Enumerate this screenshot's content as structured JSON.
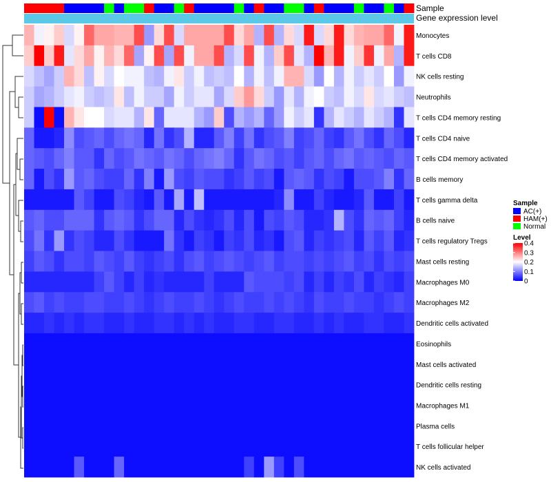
{
  "chart_data": {
    "type": "heatmap",
    "annotation_tracks": [
      "Sample",
      "Gene expression level"
    ],
    "row_labels": [
      "Monocytes",
      "T cells CD8",
      "NK cells resting",
      "Neutrophils",
      "T cells CD4 memory resting",
      "T cells CD4 naive",
      "T cells CD4 memory activated",
      "B cells memory",
      "T cells gamma delta",
      "B cells naive",
      "T cells regulatory  Tregs",
      "Mast cells resting",
      "Macrophages M0",
      "Macrophages M2",
      "Dendritic cells activated",
      "Eosinophils",
      "Mast cells activated",
      "Dendritic cells resting",
      "Macrophages M1",
      "Plasma cells",
      "T cells follicular helper",
      "NK cells activated"
    ],
    "sample_groups": [
      "H",
      "H",
      "H",
      "H",
      "A",
      "A",
      "A",
      "A",
      "N",
      "A",
      "N",
      "N",
      "H",
      "A",
      "A",
      "N",
      "H",
      "A",
      "A",
      "A",
      "A",
      "N",
      "A",
      "H",
      "A",
      "A",
      "N",
      "N",
      "A",
      "H",
      "A",
      "A",
      "A",
      "N",
      "A",
      "A",
      "N",
      "A",
      "H"
    ],
    "values": [
      [
        0.26,
        0.19,
        0.21,
        0.24,
        0.17,
        0.21,
        0.32,
        0.27,
        0.27,
        0.26,
        0.26,
        0.34,
        0.12,
        0.23,
        0.34,
        0.17,
        0.27,
        0.27,
        0.27,
        0.27,
        0.34,
        0.23,
        0.27,
        0.14,
        0.34,
        0.14,
        0.23,
        0.17,
        0.38,
        0.17,
        0.23,
        0.38,
        0.23,
        0.26,
        0.27,
        0.27,
        0.32,
        0.19,
        0.38
      ],
      [
        0.24,
        0.4,
        0.24,
        0.38,
        0.18,
        0.23,
        0.27,
        0.21,
        0.26,
        0.23,
        0.32,
        0.13,
        0.21,
        0.34,
        0.13,
        0.34,
        0.19,
        0.27,
        0.27,
        0.34,
        0.14,
        0.17,
        0.34,
        0.19,
        0.14,
        0.24,
        0.34,
        0.18,
        0.14,
        0.4,
        0.26,
        0.38,
        0.19,
        0.24,
        0.36,
        0.19,
        0.27,
        0.14,
        0.38
      ],
      [
        0.17,
        0.15,
        0.13,
        0.16,
        0.26,
        0.23,
        0.15,
        0.21,
        0.17,
        0.2,
        0.19,
        0.19,
        0.15,
        0.14,
        0.19,
        0.22,
        0.16,
        0.19,
        0.15,
        0.16,
        0.15,
        0.2,
        0.14,
        0.19,
        0.15,
        0.19,
        0.26,
        0.26,
        0.17,
        0.12,
        0.2,
        0.14,
        0.19,
        0.16,
        0.18,
        0.16,
        0.2,
        0.12,
        0.19
      ],
      [
        0.16,
        0.13,
        0.14,
        0.16,
        0.18,
        0.19,
        0.16,
        0.15,
        0.16,
        0.22,
        0.15,
        0.19,
        0.16,
        0.16,
        0.13,
        0.19,
        0.16,
        0.18,
        0.18,
        0.13,
        0.17,
        0.24,
        0.28,
        0.23,
        0.16,
        0.12,
        0.18,
        0.14,
        0.19,
        0.2,
        0.16,
        0.15,
        0.19,
        0.17,
        0.22,
        0.17,
        0.18,
        0.16,
        0.15
      ],
      [
        0.16,
        0.01,
        0.4,
        0.01,
        0.26,
        0.22,
        0.2,
        0.2,
        0.17,
        0.18,
        0.18,
        0.14,
        0.22,
        0.08,
        0.18,
        0.18,
        0.18,
        0.14,
        0.12,
        0.24,
        0.06,
        0.14,
        0.12,
        0.14,
        0.08,
        0.12,
        0.19,
        0.16,
        0.18,
        0.04,
        0.14,
        0.18,
        0.16,
        0.14,
        0.18,
        0.16,
        0.14,
        0.04,
        0.18
      ],
      [
        0.08,
        0.02,
        0.02,
        0.03,
        0.11,
        0.06,
        0.07,
        0.08,
        0.06,
        0.08,
        0.09,
        0.08,
        0.03,
        0.09,
        0.04,
        0.06,
        0.14,
        0.03,
        0.03,
        0.07,
        0.1,
        0.05,
        0.09,
        0.04,
        0.06,
        0.07,
        0.1,
        0.05,
        0.06,
        0.08,
        0.05,
        0.04,
        0.07,
        0.09,
        0.06,
        0.04,
        0.08,
        0.06,
        0.03
      ],
      [
        0.08,
        0.07,
        0.06,
        0.08,
        0.1,
        0.07,
        0.07,
        0.04,
        0.08,
        0.06,
        0.07,
        0.09,
        0.08,
        0.07,
        0.09,
        0.08,
        0.06,
        0.08,
        0.09,
        0.1,
        0.08,
        0.04,
        0.07,
        0.09,
        0.08,
        0.06,
        0.07,
        0.05,
        0.07,
        0.08,
        0.06,
        0.08,
        0.09,
        0.07,
        0.08,
        0.07,
        0.06,
        0.08,
        0.07
      ],
      [
        0.08,
        0.02,
        0.06,
        0.04,
        0.12,
        0.07,
        0.08,
        0.06,
        0.05,
        0.05,
        0.08,
        0.04,
        0.1,
        0.02,
        0.12,
        0.06,
        0.05,
        0.07,
        0.06,
        0.06,
        0.04,
        0.05,
        0.07,
        0.05,
        0.06,
        0.02,
        0.07,
        0.08,
        0.07,
        0.04,
        0.06,
        0.05,
        0.02,
        0.06,
        0.06,
        0.07,
        0.1,
        0.04,
        0.08
      ],
      [
        0.02,
        0.02,
        0.02,
        0.02,
        0.02,
        0.07,
        0.05,
        0.02,
        0.02,
        0.06,
        0.05,
        0.03,
        0.02,
        0.07,
        0.02,
        0.13,
        0.02,
        0.15,
        0.02,
        0.02,
        0.02,
        0.02,
        0.02,
        0.02,
        0.02,
        0.03,
        0.11,
        0.02,
        0.02,
        0.05,
        0.03,
        0.02,
        0.02,
        0.03,
        0.07,
        0.02,
        0.02,
        0.05,
        0.02
      ],
      [
        0.07,
        0.08,
        0.06,
        0.06,
        0.08,
        0.08,
        0.08,
        0.04,
        0.07,
        0.08,
        0.07,
        0.04,
        0.06,
        0.08,
        0.08,
        0.03,
        0.06,
        0.04,
        0.03,
        0.04,
        0.06,
        0.03,
        0.06,
        0.02,
        0.06,
        0.05,
        0.07,
        0.06,
        0.03,
        0.03,
        0.04,
        0.14,
        0.06,
        0.04,
        0.08,
        0.07,
        0.08,
        0.05,
        0.03
      ],
      [
        0.06,
        0.09,
        0.04,
        0.12,
        0.04,
        0.06,
        0.05,
        0.03,
        0.03,
        0.06,
        0.04,
        0.02,
        0.02,
        0.02,
        0.09,
        0.04,
        0.02,
        0.05,
        0.04,
        0.02,
        0.05,
        0.04,
        0.06,
        0.03,
        0.04,
        0.02,
        0.06,
        0.07,
        0.03,
        0.05,
        0.04,
        0.05,
        0.06,
        0.03,
        0.07,
        0.05,
        0.07,
        0.03,
        0.04
      ],
      [
        0.05,
        0.07,
        0.06,
        0.04,
        0.06,
        0.06,
        0.05,
        0.07,
        0.06,
        0.05,
        0.07,
        0.05,
        0.04,
        0.05,
        0.06,
        0.04,
        0.06,
        0.07,
        0.05,
        0.06,
        0.07,
        0.06,
        0.05,
        0.06,
        0.07,
        0.05,
        0.06,
        0.06,
        0.05,
        0.06,
        0.05,
        0.06,
        0.07,
        0.05,
        0.06,
        0.04,
        0.06,
        0.05,
        0.06
      ],
      [
        0.03,
        0.03,
        0.03,
        0.03,
        0.03,
        0.03,
        0.03,
        0.05,
        0.07,
        0.05,
        0.03,
        0.05,
        0.03,
        0.04,
        0.03,
        0.03,
        0.03,
        0.03,
        0.05,
        0.03,
        0.03,
        0.03,
        0.07,
        0.06,
        0.06,
        0.06,
        0.05,
        0.06,
        0.03,
        0.05,
        0.03,
        0.05,
        0.04,
        0.06,
        0.03,
        0.05,
        0.04,
        0.03,
        0.05
      ],
      [
        0.06,
        0.07,
        0.05,
        0.06,
        0.05,
        0.05,
        0.06,
        0.06,
        0.05,
        0.05,
        0.06,
        0.05,
        0.04,
        0.05,
        0.06,
        0.05,
        0.05,
        0.06,
        0.05,
        0.04,
        0.05,
        0.06,
        0.05,
        0.05,
        0.06,
        0.05,
        0.06,
        0.05,
        0.04,
        0.06,
        0.05,
        0.05,
        0.06,
        0.05,
        0.05,
        0.04,
        0.05,
        0.06,
        0.05
      ],
      [
        0.03,
        0.03,
        0.04,
        0.03,
        0.04,
        0.03,
        0.04,
        0.04,
        0.03,
        0.03,
        0.04,
        0.03,
        0.03,
        0.04,
        0.04,
        0.03,
        0.04,
        0.03,
        0.04,
        0.03,
        0.03,
        0.04,
        0.04,
        0.03,
        0.03,
        0.04,
        0.04,
        0.03,
        0.03,
        0.04,
        0.03,
        0.04,
        0.03,
        0.03,
        0.04,
        0.04,
        0.03,
        0.03,
        0.04
      ],
      [
        0.01,
        0.01,
        0.01,
        0.01,
        0.01,
        0.01,
        0.01,
        0.01,
        0.01,
        0.01,
        0.01,
        0.01,
        0.01,
        0.01,
        0.01,
        0.01,
        0.01,
        0.01,
        0.01,
        0.01,
        0.01,
        0.01,
        0.01,
        0.01,
        0.01,
        0.01,
        0.01,
        0.01,
        0.01,
        0.01,
        0.01,
        0.01,
        0.01,
        0.01,
        0.01,
        0.01,
        0.01,
        0.01,
        0.01
      ],
      [
        0.01,
        0.01,
        0.01,
        0.01,
        0.01,
        0.01,
        0.01,
        0.01,
        0.01,
        0.01,
        0.01,
        0.01,
        0.01,
        0.01,
        0.01,
        0.01,
        0.01,
        0.01,
        0.01,
        0.01,
        0.01,
        0.01,
        0.01,
        0.01,
        0.01,
        0.01,
        0.01,
        0.01,
        0.01,
        0.01,
        0.01,
        0.01,
        0.01,
        0.01,
        0.01,
        0.01,
        0.01,
        0.01,
        0.01
      ],
      [
        0.01,
        0.01,
        0.01,
        0.01,
        0.01,
        0.01,
        0.01,
        0.01,
        0.01,
        0.01,
        0.01,
        0.01,
        0.01,
        0.01,
        0.01,
        0.01,
        0.01,
        0.01,
        0.01,
        0.01,
        0.01,
        0.01,
        0.01,
        0.01,
        0.01,
        0.01,
        0.01,
        0.01,
        0.01,
        0.01,
        0.01,
        0.01,
        0.01,
        0.01,
        0.01,
        0.01,
        0.01,
        0.01,
        0.01
      ],
      [
        0.01,
        0.01,
        0.01,
        0.01,
        0.01,
        0.01,
        0.01,
        0.01,
        0.01,
        0.01,
        0.01,
        0.01,
        0.01,
        0.01,
        0.01,
        0.01,
        0.01,
        0.01,
        0.01,
        0.01,
        0.01,
        0.01,
        0.01,
        0.01,
        0.01,
        0.01,
        0.01,
        0.01,
        0.01,
        0.01,
        0.01,
        0.01,
        0.01,
        0.01,
        0.01,
        0.01,
        0.01,
        0.01,
        0.01
      ],
      [
        0.01,
        0.01,
        0.01,
        0.01,
        0.01,
        0.01,
        0.01,
        0.01,
        0.01,
        0.01,
        0.01,
        0.01,
        0.01,
        0.01,
        0.01,
        0.01,
        0.01,
        0.01,
        0.01,
        0.01,
        0.01,
        0.01,
        0.01,
        0.01,
        0.01,
        0.01,
        0.01,
        0.01,
        0.01,
        0.01,
        0.01,
        0.01,
        0.01,
        0.01,
        0.01,
        0.01,
        0.01,
        0.01,
        0.01
      ],
      [
        0.01,
        0.01,
        0.01,
        0.01,
        0.01,
        0.01,
        0.01,
        0.01,
        0.01,
        0.01,
        0.01,
        0.01,
        0.01,
        0.01,
        0.01,
        0.01,
        0.01,
        0.01,
        0.01,
        0.01,
        0.01,
        0.01,
        0.01,
        0.01,
        0.01,
        0.01,
        0.01,
        0.01,
        0.01,
        0.01,
        0.01,
        0.01,
        0.01,
        0.01,
        0.01,
        0.01,
        0.01,
        0.01,
        0.01
      ],
      [
        0.01,
        0.01,
        0.01,
        0.01,
        0.01,
        0.07,
        0.01,
        0.01,
        0.01,
        0.08,
        0.01,
        0.01,
        0.01,
        0.01,
        0.01,
        0.01,
        0.01,
        0.01,
        0.01,
        0.01,
        0.01,
        0.01,
        0.05,
        0.01,
        0.12,
        0.05,
        0.01,
        0.06,
        0.01,
        0.01,
        0.01,
        0.01,
        0.01,
        0.01,
        0.01,
        0.01,
        0.01,
        0.01,
        0.01
      ]
    ],
    "color_scale": {
      "low": "#0000FF",
      "mid": "#FFFFFF",
      "high": "#FF0000",
      "min": 0,
      "mid_value": 0.2,
      "max": 0.4
    },
    "expression_track_color": "#5BC8E8",
    "legend": {
      "sample_title": "Sample",
      "sample_entries": [
        {
          "key": "A",
          "label": "AC(+)",
          "color": "#0000FF"
        },
        {
          "key": "H",
          "label": "HAM(+)",
          "color": "#FF0000"
        },
        {
          "key": "N",
          "label": "Normal",
          "color": "#00FF00"
        }
      ],
      "level_title": "Level",
      "level_ticks": [
        0.4,
        0.3,
        0.2,
        0.1,
        0
      ]
    }
  }
}
